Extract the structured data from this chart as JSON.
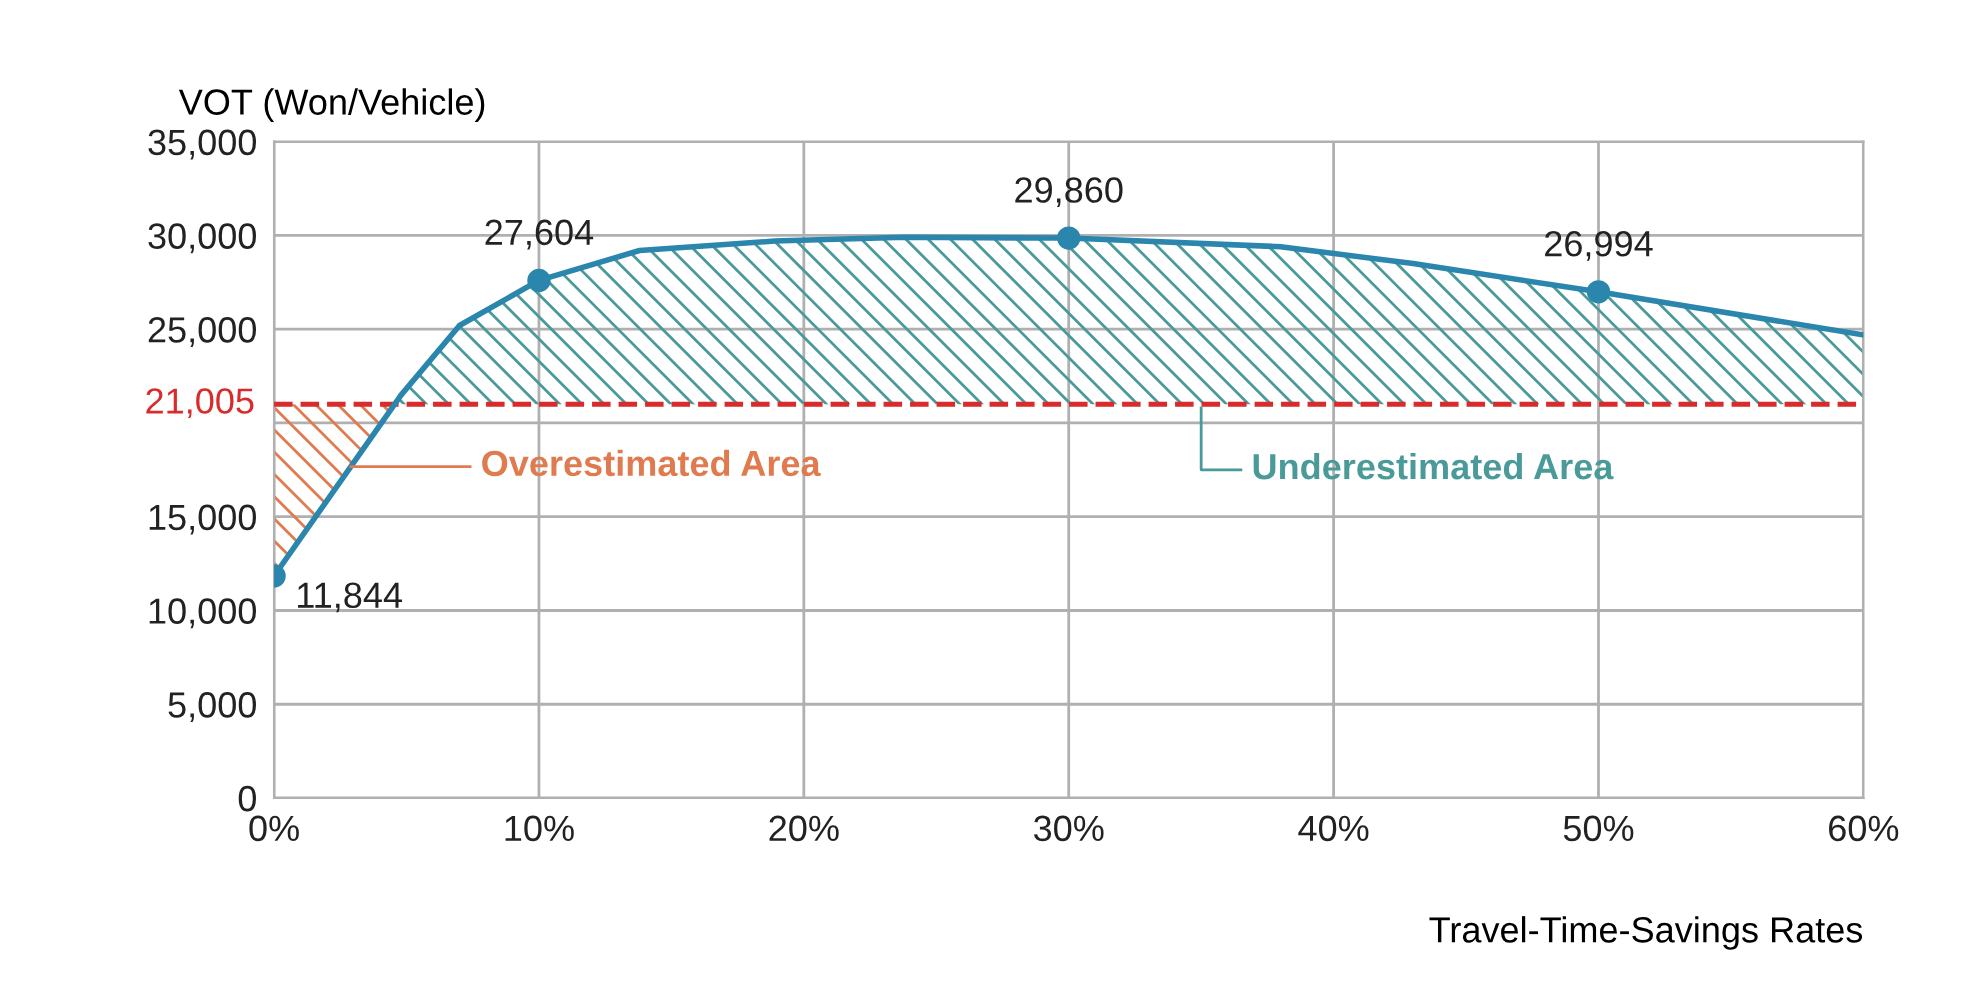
{
  "chart_data": {
    "type": "line",
    "ylabel": "VOT (Won/Vehicle)",
    "xlabel": "Travel-Time-Savings Rates",
    "x": [
      0,
      4.8,
      7,
      10,
      13.8,
      18.9,
      23.8,
      30,
      38,
      43,
      50,
      60
    ],
    "series": [
      {
        "color": "#2b86ad",
        "values": [
          11844,
          21500,
          25200,
          27604,
          29200,
          29700,
          29900,
          29860,
          29400,
          28500,
          26994,
          24700
        ]
      },
      {
        "type": "scatter",
        "color": "#2b86ad",
        "marker": "circle",
        "x": [
          0,
          10,
          30,
          50
        ],
        "values": [
          11844,
          27604,
          29860,
          26994
        ],
        "value_labels": [
          "11,844",
          "27,604",
          "29,860",
          "26,994"
        ]
      },
      {
        "type": "area",
        "color": "#e07b4f",
        "x": [
          0,
          4.55
        ],
        "values": [
          11844,
          21005
        ]
      },
      {
        "type": "area",
        "color": "#4a9a9a",
        "x": [
          4.55,
          7,
          10,
          13.8,
          18.9,
          23.8,
          30,
          38,
          43,
          50,
          60
        ],
        "values": [
          21005,
          25200,
          27604,
          29200,
          29700,
          29900,
          29860,
          29400,
          28500,
          26994,
          24700
        ]
      }
    ],
    "line_style": "solid",
    "xlim": [
      0,
      60
    ],
    "xticks": [
      {
        "value": 0,
        "label": "0%"
      },
      {
        "value": 10,
        "label": "10%"
      },
      {
        "value": 20,
        "label": "20%"
      },
      {
        "value": 30,
        "label": "30%"
      },
      {
        "value": 40,
        "label": "40%"
      },
      {
        "value": 50,
        "label": "50%"
      },
      {
        "value": 60,
        "label": "60%"
      }
    ],
    "ylim": [
      0,
      35000
    ],
    "yticks": [
      {
        "value": 0,
        "label": "0"
      },
      {
        "value": 5000,
        "label": "5,000"
      },
      {
        "value": 10000,
        "label": "10,000"
      },
      {
        "value": 15000,
        "label": "15,000"
      },
      {
        "value": 20000,
        "label": null
      },
      {
        "value": 25000,
        "label": "25,000"
      },
      {
        "value": 30000,
        "label": "30,000"
      },
      {
        "value": 35000,
        "label": "35,000"
      }
    ],
    "ref_lines": [
      {
        "axis": "y",
        "value": 21005,
        "label": "21,005",
        "color": "#d92b2b",
        "line_style": "dashed"
      }
    ],
    "annotations": [
      {
        "text": "Overestimated Area",
        "x": 2.9,
        "y": 17678
      },
      {
        "text": "Underestimated Area",
        "x": 35,
        "y": 21005
      }
    ],
    "grid": true,
    "legend": false
  }
}
